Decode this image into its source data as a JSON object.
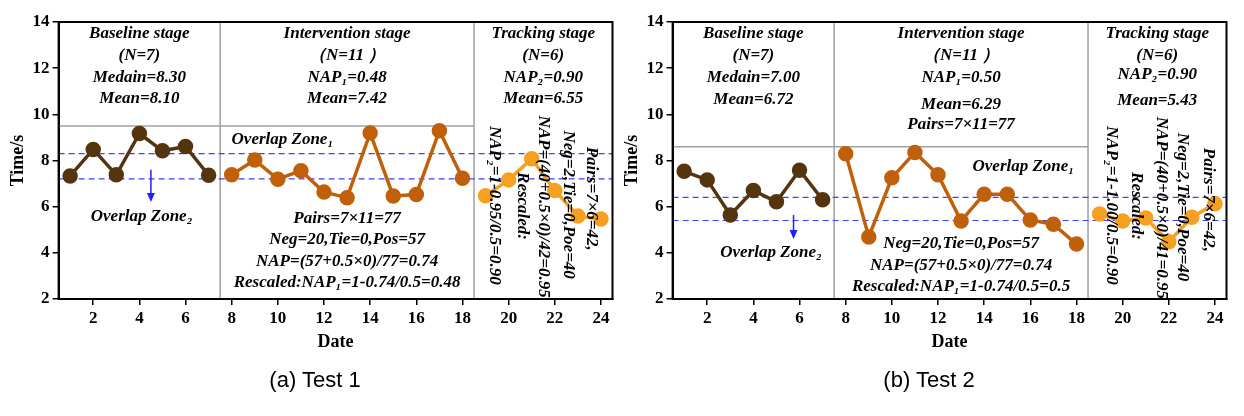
{
  "chart_data": [
    {
      "type": "line",
      "xlabel": "Date",
      "ylabel": "Time/s",
      "xlim": [
        0.5,
        24.5
      ],
      "ylim": [
        2,
        14
      ],
      "xticks": [
        2,
        4,
        6,
        8,
        10,
        12,
        14,
        16,
        18,
        20,
        22,
        24
      ],
      "yticks": [
        2,
        4,
        6,
        8,
        10,
        12,
        14
      ],
      "marker": "circle",
      "grid": false,
      "series": [
        {
          "color": "#55350f",
          "x": [
            1,
            2,
            3,
            4,
            5,
            6,
            7
          ],
          "values": [
            7.33,
            8.48,
            7.38,
            9.17,
            8.42,
            8.61,
            7.36
          ]
        },
        {
          "color": "#c0600a",
          "x": [
            8,
            9,
            10,
            11,
            12,
            13,
            14,
            15,
            16,
            17,
            18
          ],
          "values": [
            7.38,
            8.02,
            7.19,
            7.56,
            6.63,
            6.39,
            9.19,
            6.46,
            6.53,
            9.29,
            7.23
          ]
        },
        {
          "color": "#f5a020",
          "x": [
            19,
            20,
            21,
            22,
            23,
            24
          ],
          "values": [
            6.47,
            7.16,
            8.08,
            6.7,
            5.6,
            5.47
          ]
        }
      ],
      "ref_lines": [
        {
          "axis": "x",
          "value": 7.5,
          "color": "#a0a0a0"
        },
        {
          "axis": "x",
          "value": 18.5,
          "color": "#a0a0a0"
        },
        {
          "axis": "y",
          "value": 9.5,
          "color": "#a0a0a0"
        },
        {
          "axis": "y",
          "value": 8.3,
          "color": "#4040ff",
          "line_style": "dashed"
        },
        {
          "axis": "y",
          "value": 7.2,
          "color": "#4040ff",
          "line_style": "dashed"
        }
      ],
      "annotations": [
        "Baseline stage",
        "(N=7)",
        "Medain=8.30",
        "Mean=8.10",
        "Intervention stage",
        "（N=11 ）",
        "NAP₁=0.48",
        "Mean=7.42",
        "Tracking stage",
        "(N=6)",
        "NAP₂=0.90",
        "Mean=6.55",
        "Overlap Zone₁",
        "Overlap Zone₂",
        "Pairs=7×11=77",
        "Neg=20,Tie=0,Pos=57",
        "NAP=(57+0.5×0)/77=0.74",
        "Rescaled:NAP₁=1-0.74/0.5=0.48",
        "NAP₂=1-0.95/0.5=0.90",
        "Rescaled:",
        "NAP=(40+0.5×0)/42=0.95",
        "Neg=2,Tie=0,Poe=40",
        "Pairs=7×6=42,",
        "(a) Test 1"
      ]
    },
    {
      "type": "line",
      "xlabel": "Date",
      "ylabel": "Time/s",
      "xlim": [
        0.5,
        24.5
      ],
      "ylim": [
        2,
        14
      ],
      "xticks": [
        2,
        4,
        6,
        8,
        10,
        12,
        14,
        16,
        18,
        20,
        22,
        24
      ],
      "yticks": [
        2,
        4,
        6,
        8,
        10,
        12,
        14
      ],
      "marker": "circle",
      "grid": false,
      "series": [
        {
          "color": "#55350f",
          "x": [
            1,
            2,
            3,
            4,
            5,
            6,
            7
          ],
          "values": [
            7.53,
            7.16,
            5.64,
            6.7,
            6.21,
            7.58,
            6.3
          ]
        },
        {
          "color": "#c0600a",
          "x": [
            8,
            9,
            10,
            11,
            12,
            13,
            14,
            15,
            16,
            17,
            18
          ],
          "values": [
            8.29,
            4.69,
            7.25,
            8.35,
            7.38,
            5.38,
            6.54,
            6.54,
            5.42,
            5.24,
            4.38
          ]
        },
        {
          "color": "#f5a020",
          "x": [
            19,
            20,
            21,
            22,
            23,
            24
          ],
          "values": [
            5.68,
            5.38,
            5.51,
            4.48,
            5.54,
            6.13
          ]
        }
      ],
      "ref_lines": [
        {
          "axis": "x",
          "value": 7.5,
          "color": "#a0a0a0"
        },
        {
          "axis": "x",
          "value": 18.5,
          "color": "#a0a0a0"
        },
        {
          "axis": "y",
          "value": 8.6,
          "color": "#a0a0a0"
        },
        {
          "axis": "y",
          "value": 6.4,
          "color": "#4040ff",
          "line_style": "dashed"
        },
        {
          "axis": "y",
          "value": 5.4,
          "color": "#4040ff",
          "line_style": "dashed"
        }
      ],
      "annotations": [
        "Baseline stage",
        "(N=7)",
        "Medain=7.00",
        "Mean=6.72",
        "Intervention stage",
        "（N=11 ）",
        "NAP₁=0.50",
        "Mean=6.29",
        "Pairs=7×11=77",
        "Tracking stage",
        "(N=6)",
        "NAP₂=0.90",
        "Mean=5.43",
        "Overlap Zone₁",
        "Overlap Zone₂",
        "Neg=20,Tie=0,Pos=57",
        "NAP=(57+0.5×0)/77=0.74",
        "Rescaled:NAP₁=1-0.74/0.5=0.5",
        "NAP₂=1-1.00/0.5=0.90",
        "Rescaled:",
        "NAP=(40+0.5×0)/41=0.95",
        "Neg=2,Tie=0,Poe=40",
        "Pairs=7×6=42,",
        "(b) Test 2"
      ]
    }
  ]
}
